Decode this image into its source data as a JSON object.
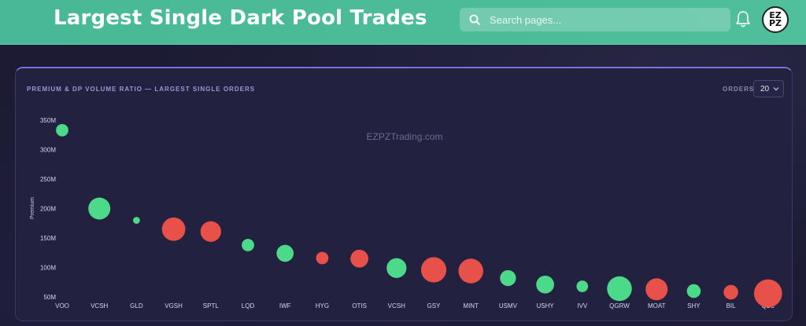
{
  "header": {
    "title": "Largest Single Dark Pool Trades",
    "search_placeholder": "Search pages...",
    "avatar_text": "EZPZ"
  },
  "card": {
    "title": "PREMIUM & DP VOLUME RATIO — LARGEST SINGLE ORDERS",
    "orders_label": "ORDERS",
    "orders_value": "20"
  },
  "colors": {
    "green": "#4cd98a",
    "red": "#e8504a",
    "accent": "#48b896"
  },
  "chart_data": {
    "type": "scatter",
    "watermark": "EZPZTrading.com",
    "ylabel": "Premium",
    "xlabel": "",
    "ylim": [
      50,
      350
    ],
    "yticks": [
      50,
      100,
      150,
      200,
      250,
      300,
      350
    ],
    "ytick_labels": [
      "50M",
      "100M",
      "150M",
      "200M",
      "250M",
      "300M",
      "350M"
    ],
    "grid": false,
    "categories": [
      "VOO",
      "VCSH",
      "GLD",
      "VGSH",
      "SPTL",
      "LQD",
      "IWF",
      "HYG",
      "OTIS",
      "VCSH",
      "GSY",
      "MINT",
      "USMV",
      "USHY",
      "IVV",
      "QGRW",
      "MOAT",
      "SHY",
      "BIL",
      "QLC"
    ],
    "points": [
      {
        "ticker": "VOO",
        "premium": 333,
        "ratio": 0.25,
        "side": "green"
      },
      {
        "ticker": "VCSH",
        "premium": 200,
        "ratio": 0.6,
        "side": "green"
      },
      {
        "ticker": "GLD",
        "premium": 180,
        "ratio": 0.05,
        "side": "green"
      },
      {
        "ticker": "VGSH",
        "premium": 165,
        "ratio": 0.65,
        "side": "red"
      },
      {
        "ticker": "SPTL",
        "premium": 161,
        "ratio": 0.55,
        "side": "red"
      },
      {
        "ticker": "LQD",
        "premium": 138,
        "ratio": 0.25,
        "side": "green"
      },
      {
        "ticker": "IWF",
        "premium": 124,
        "ratio": 0.42,
        "side": "green"
      },
      {
        "ticker": "HYG",
        "premium": 116,
        "ratio": 0.25,
        "side": "red"
      },
      {
        "ticker": "OTIS",
        "premium": 115,
        "ratio": 0.45,
        "side": "red"
      },
      {
        "ticker": "VCSH",
        "premium": 99,
        "ratio": 0.52,
        "side": "green"
      },
      {
        "ticker": "GSY",
        "premium": 96,
        "ratio": 0.72,
        "side": "red"
      },
      {
        "ticker": "MINT",
        "premium": 94,
        "ratio": 0.7,
        "side": "red"
      },
      {
        "ticker": "USMV",
        "premium": 82,
        "ratio": 0.38,
        "side": "green"
      },
      {
        "ticker": "USHY",
        "premium": 71,
        "ratio": 0.45,
        "side": "green"
      },
      {
        "ticker": "IVV",
        "premium": 68,
        "ratio": 0.22,
        "side": "green"
      },
      {
        "ticker": "QGRW",
        "premium": 64,
        "ratio": 0.7,
        "side": "green"
      },
      {
        "ticker": "MOAT",
        "premium": 63,
        "ratio": 0.6,
        "side": "red"
      },
      {
        "ticker": "SHY",
        "premium": 60,
        "ratio": 0.3,
        "side": "green"
      },
      {
        "ticker": "BIL",
        "premium": 58,
        "ratio": 0.33,
        "side": "red"
      },
      {
        "ticker": "QLC",
        "premium": 56,
        "ratio": 0.82,
        "side": "red"
      }
    ]
  }
}
